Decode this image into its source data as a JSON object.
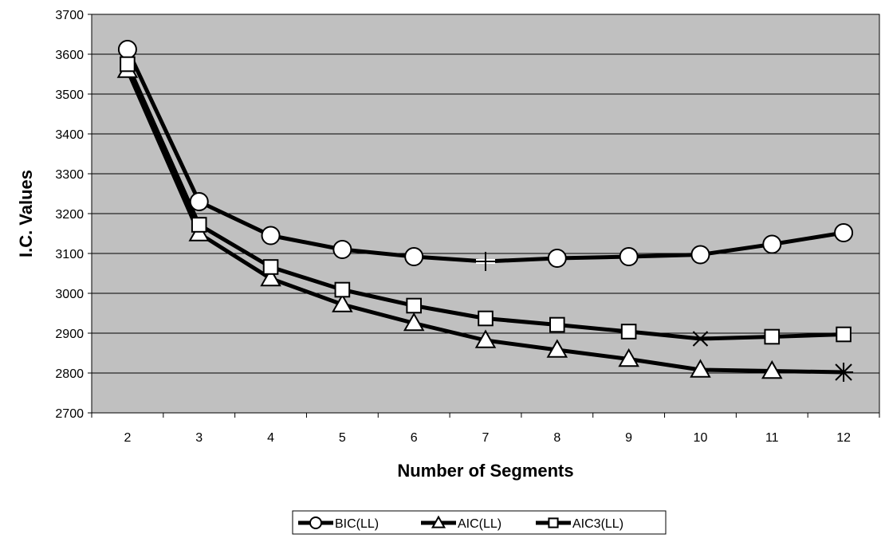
{
  "chart_data": {
    "type": "line",
    "xlabel": "Number of Segments",
    "ylabel": "I.C. Values",
    "x": [
      2,
      3,
      4,
      5,
      6,
      7,
      8,
      9,
      10,
      11,
      12
    ],
    "xlim": [
      1.5,
      12.5
    ],
    "ylim": [
      2700,
      3700
    ],
    "y_ticks": [
      2700,
      2800,
      2900,
      3000,
      3100,
      3200,
      3300,
      3400,
      3500,
      3600,
      3700
    ],
    "grid": "horizontal",
    "legend_position": "bottom",
    "plot_background": "#c0c0c0",
    "line_color": "#000000",
    "series": [
      {
        "name": "BIC(LL)",
        "marker": "circle",
        "values": [
          3612,
          3230,
          3145,
          3110,
          3092,
          3080,
          3088,
          3092,
          3097,
          3123,
          3152
        ],
        "minimum_index": 5,
        "minimum_marker": "plus"
      },
      {
        "name": "AIC(LL)",
        "marker": "triangle",
        "values": [
          3560,
          3150,
          3037,
          2972,
          2925,
          2882,
          2858,
          2835,
          2808,
          2805,
          2802
        ],
        "minimum_index": 10,
        "minimum_marker": "asterisk"
      },
      {
        "name": "AIC3(LL)",
        "marker": "square",
        "values": [
          3575,
          3172,
          3066,
          3009,
          2969,
          2937,
          2921,
          2904,
          2886,
          2891,
          2897
        ],
        "minimum_index": 8,
        "minimum_marker": "x"
      }
    ]
  }
}
